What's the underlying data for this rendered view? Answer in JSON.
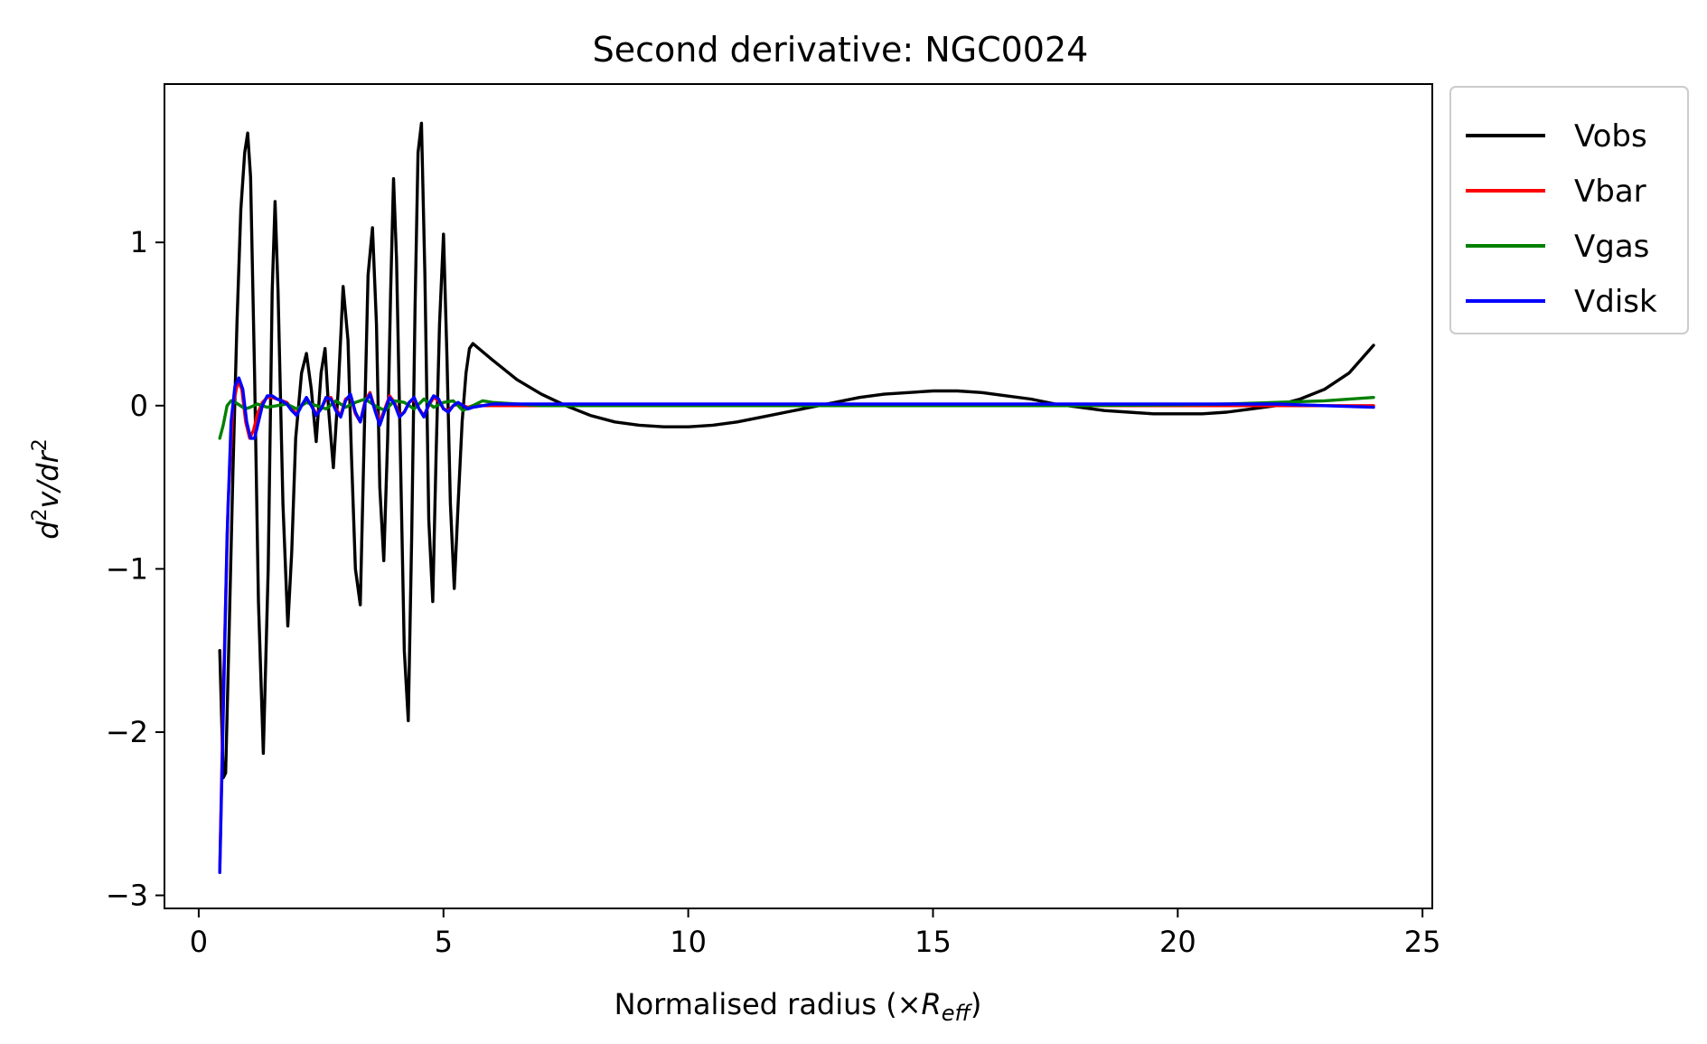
{
  "chart_data": {
    "type": "line",
    "title": "Second derivative: NGC0024",
    "xlabel": {
      "prefix": "Normalised radius (×",
      "symbol": "R",
      "subscript": "eff",
      "suffix": ")"
    },
    "ylabel": {
      "text": "d",
      "sup": "2",
      "mid": "v/dr",
      "sup2": "2"
    },
    "xlim": [
      -0.7,
      25.2
    ],
    "ylim": [
      -3.08,
      1.97
    ],
    "xticks": [
      0,
      5,
      10,
      15,
      20,
      25
    ],
    "xtick_labels": [
      "0",
      "5",
      "10",
      "15",
      "20",
      "25"
    ],
    "yticks": [
      -3,
      -2,
      -1,
      0,
      1
    ],
    "ytick_labels": [
      "−3",
      "−2",
      "−1",
      "0",
      "1"
    ],
    "grid": false,
    "legend_position": "outside-top-right",
    "series": [
      {
        "name": "Vobs",
        "color": "#000000",
        "x": [
          0.43,
          0.5,
          0.55,
          0.62,
          0.7,
          0.78,
          0.86,
          0.94,
          1.0,
          1.06,
          1.14,
          1.22,
          1.32,
          1.42,
          1.5,
          1.56,
          1.62,
          1.72,
          1.82,
          1.9,
          1.98,
          2.1,
          2.2,
          2.3,
          2.4,
          2.5,
          2.58,
          2.66,
          2.75,
          2.85,
          2.95,
          3.05,
          3.12,
          3.2,
          3.3,
          3.38,
          3.46,
          3.55,
          3.63,
          3.7,
          3.78,
          3.86,
          3.92,
          3.98,
          4.04,
          4.12,
          4.2,
          4.28,
          4.35,
          4.42,
          4.48,
          4.55,
          4.62,
          4.7,
          4.78,
          4.85,
          4.92,
          5.0,
          5.07,
          5.14,
          5.22,
          5.3,
          5.38,
          5.46,
          5.53,
          5.6,
          6.0,
          6.5,
          7.0,
          7.5,
          8.0,
          8.5,
          9.0,
          9.5,
          10.0,
          10.5,
          11.0,
          11.5,
          12.0,
          12.5,
          13.0,
          13.5,
          14.0,
          14.5,
          15.0,
          15.5,
          16.0,
          16.5,
          17.0,
          17.5,
          18.0,
          18.5,
          19.0,
          19.5,
          20.0,
          20.5,
          21.0,
          21.5,
          22.0,
          22.5,
          23.0,
          23.5,
          24.0
        ],
        "values": [
          -1.5,
          -2.28,
          -2.25,
          -1.4,
          -0.4,
          0.5,
          1.2,
          1.55,
          1.67,
          1.4,
          0.2,
          -1.2,
          -2.13,
          -1.0,
          0.7,
          1.25,
          0.7,
          -0.6,
          -1.35,
          -0.9,
          -0.2,
          0.2,
          0.32,
          0.1,
          -0.22,
          0.2,
          0.35,
          -0.05,
          -0.38,
          0.1,
          0.73,
          0.4,
          -0.3,
          -1.0,
          -1.22,
          -0.2,
          0.8,
          1.09,
          0.5,
          -0.5,
          -0.95,
          -0.2,
          0.7,
          1.39,
          0.9,
          -0.3,
          -1.5,
          -1.93,
          -0.8,
          0.6,
          1.55,
          1.73,
          0.8,
          -0.7,
          -1.2,
          -0.3,
          0.5,
          1.05,
          0.3,
          -0.6,
          -1.12,
          -0.6,
          -0.1,
          0.2,
          0.35,
          0.38,
          0.28,
          0.16,
          0.07,
          0.0,
          -0.06,
          -0.1,
          -0.12,
          -0.13,
          -0.13,
          -0.12,
          -0.1,
          -0.07,
          -0.04,
          -0.01,
          0.02,
          0.05,
          0.07,
          0.08,
          0.09,
          0.09,
          0.08,
          0.06,
          0.04,
          0.01,
          -0.01,
          -0.03,
          -0.04,
          -0.05,
          -0.05,
          -0.05,
          -0.04,
          -0.02,
          0.0,
          0.04,
          0.1,
          0.2,
          0.37
        ]
      },
      {
        "name": "Vbar",
        "color": "#ff0000",
        "x": [
          0.43,
          0.5,
          0.6,
          0.7,
          0.8,
          0.88,
          0.96,
          1.04,
          1.12,
          1.2,
          1.3,
          1.4,
          1.5,
          1.6,
          1.7,
          1.8,
          1.9,
          2.0,
          2.1,
          2.2,
          2.3,
          2.4,
          2.5,
          2.6,
          2.7,
          2.8,
          2.9,
          3.0,
          3.1,
          3.2,
          3.3,
          3.4,
          3.5,
          3.6,
          3.7,
          3.8,
          3.9,
          4.0,
          4.1,
          4.2,
          4.3,
          4.4,
          4.5,
          4.6,
          4.7,
          4.8,
          4.9,
          5.0,
          5.1,
          5.2,
          5.3,
          5.4,
          5.5,
          5.6,
          5.7,
          5.8,
          6.0,
          7.0,
          8.0,
          10.0,
          12.0,
          14.0,
          16.0,
          18.0,
          20.0,
          22.0,
          24.0
        ],
        "values": [
          -2.85,
          -1.8,
          -0.6,
          0.0,
          0.15,
          0.1,
          -0.1,
          -0.2,
          -0.15,
          -0.05,
          0.02,
          0.05,
          0.05,
          0.04,
          0.03,
          0.02,
          -0.02,
          -0.05,
          0.0,
          0.04,
          0.0,
          -0.05,
          -0.02,
          0.04,
          0.05,
          -0.02,
          -0.06,
          0.04,
          0.06,
          -0.05,
          -0.1,
          0.03,
          0.08,
          -0.02,
          -0.1,
          -0.02,
          0.06,
          0.02,
          -0.06,
          -0.04,
          0.02,
          0.04,
          -0.02,
          -0.06,
          0.0,
          0.05,
          0.03,
          -0.02,
          -0.03,
          0.0,
          0.01,
          0.0,
          -0.01,
          0.0,
          0.0,
          0.0,
          0.0,
          0.0,
          0.0,
          0.0,
          0.0,
          0.0,
          0.0,
          0.0,
          0.0,
          0.0,
          0.0
        ]
      },
      {
        "name": "Vgas",
        "color": "#008000",
        "x": [
          0.43,
          0.5,
          0.58,
          0.66,
          0.75,
          0.85,
          0.95,
          1.05,
          1.2,
          1.4,
          1.6,
          1.8,
          2.0,
          2.2,
          2.4,
          2.6,
          2.8,
          3.0,
          3.2,
          3.4,
          3.6,
          3.8,
          4.0,
          4.2,
          4.4,
          4.6,
          4.8,
          5.0,
          5.2,
          5.4,
          5.6,
          5.8,
          6.0,
          6.5,
          7.0,
          8.0,
          10.0,
          12.0,
          14.0,
          16.0,
          18.0,
          20.0,
          21.0,
          22.0,
          23.0,
          24.0
        ],
        "values": [
          -0.2,
          -0.12,
          0.0,
          0.03,
          0.02,
          0.0,
          -0.02,
          -0.01,
          0.01,
          -0.01,
          0.0,
          0.01,
          -0.02,
          0.02,
          0.0,
          -0.02,
          0.03,
          -0.01,
          0.02,
          0.04,
          0.0,
          -0.03,
          0.03,
          0.02,
          -0.02,
          0.04,
          -0.01,
          0.02,
          0.03,
          -0.03,
          0.0,
          0.03,
          0.02,
          0.01,
          0.0,
          0.0,
          0.0,
          0.0,
          0.0,
          0.0,
          0.0,
          0.005,
          0.01,
          0.02,
          0.03,
          0.05
        ]
      },
      {
        "name": "Vdisk",
        "color": "#0000ff",
        "x": [
          0.43,
          0.5,
          0.58,
          0.66,
          0.74,
          0.82,
          0.9,
          0.98,
          1.06,
          1.14,
          1.22,
          1.3,
          1.4,
          1.5,
          1.6,
          1.7,
          1.8,
          1.9,
          2.0,
          2.1,
          2.2,
          2.3,
          2.4,
          2.5,
          2.6,
          2.7,
          2.8,
          2.9,
          3.0,
          3.1,
          3.2,
          3.3,
          3.4,
          3.5,
          3.6,
          3.7,
          3.8,
          3.9,
          4.0,
          4.1,
          4.2,
          4.3,
          4.4,
          4.5,
          4.6,
          4.7,
          4.8,
          4.9,
          5.0,
          5.1,
          5.2,
          5.3,
          5.4,
          5.5,
          5.6,
          5.8,
          6.0,
          7.0,
          8.0,
          10.0,
          12.0,
          14.0,
          16.0,
          18.0,
          20.0,
          22.0,
          23.0,
          24.0
        ],
        "values": [
          -2.86,
          -1.9,
          -0.8,
          -0.1,
          0.12,
          0.17,
          0.1,
          -0.1,
          -0.2,
          -0.2,
          -0.1,
          0.0,
          0.06,
          0.06,
          0.04,
          0.03,
          0.01,
          -0.03,
          -0.06,
          0.0,
          0.05,
          0.0,
          -0.06,
          -0.02,
          0.05,
          0.04,
          -0.03,
          -0.07,
          0.03,
          0.07,
          -0.04,
          -0.1,
          0.02,
          0.07,
          -0.03,
          -0.12,
          -0.03,
          0.05,
          0.01,
          -0.07,
          -0.04,
          0.02,
          0.05,
          -0.02,
          -0.07,
          0.01,
          0.06,
          0.04,
          -0.02,
          -0.04,
          0.0,
          0.02,
          0.0,
          -0.02,
          -0.01,
          0.0,
          0.01,
          0.01,
          0.01,
          0.01,
          0.01,
          0.01,
          0.01,
          0.01,
          0.01,
          0.01,
          0.0,
          -0.01
        ]
      }
    ]
  }
}
